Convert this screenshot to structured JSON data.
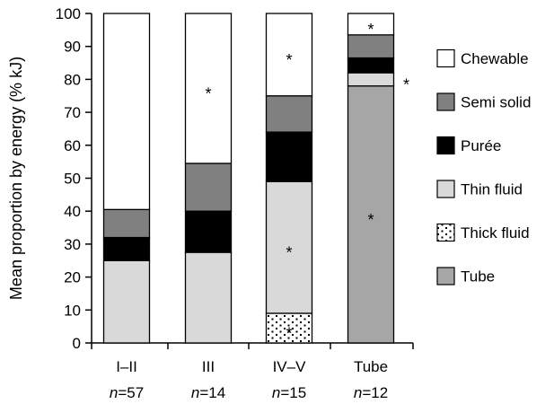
{
  "chart_data": {
    "type": "bar",
    "stacked": true,
    "ylabel": "Mean proportion by energy (% kJ)",
    "ylim": [
      0,
      100
    ],
    "yticks": [
      0,
      10,
      20,
      30,
      40,
      50,
      60,
      70,
      80,
      90,
      100
    ],
    "categories": [
      "I–II",
      "III",
      "IV–V",
      "Tube"
    ],
    "sample_sizes": [
      {
        "prefix": "n",
        "text": "=57"
      },
      {
        "prefix": "n",
        "text": "=14"
      },
      {
        "prefix": "n",
        "text": "=15"
      },
      {
        "prefix": "n",
        "text": "=12"
      }
    ],
    "series": [
      {
        "name": "Tube",
        "color": "#a6a6a6",
        "pattern": "none",
        "values": [
          0,
          0,
          0,
          78
        ]
      },
      {
        "name": "Thick fluid",
        "color": "#ffffff",
        "pattern": "dots",
        "values": [
          0,
          0,
          9,
          0
        ]
      },
      {
        "name": "Thin fluid",
        "color": "#d9d9d9",
        "pattern": "none",
        "values": [
          25,
          27.5,
          40,
          4
        ]
      },
      {
        "name": "Purée",
        "color": "#000000",
        "pattern": "none",
        "values": [
          7,
          12.5,
          15,
          4.5
        ]
      },
      {
        "name": "Semi solid",
        "color": "#808080",
        "pattern": "none",
        "values": [
          8.5,
          14.5,
          11,
          7
        ]
      },
      {
        "name": "Chewable",
        "color": "#ffffff",
        "pattern": "none",
        "values": [
          59.5,
          45.5,
          25,
          6.5
        ]
      }
    ],
    "legend_order": [
      "Chewable",
      "Semi solid",
      "Purée",
      "Thin fluid",
      "Thick fluid",
      "Tube"
    ],
    "legend_position": "right",
    "annotations": [
      {
        "category": "III",
        "series": "Chewable",
        "text": "*"
      },
      {
        "category": "IV–V",
        "series": "Chewable",
        "text": "*"
      },
      {
        "category": "IV–V",
        "series": "Thin fluid",
        "text": "*"
      },
      {
        "category": "IV–V",
        "series": "Thick fluid",
        "text": "*"
      },
      {
        "category": "Tube",
        "series": "Chewable",
        "text": "*"
      },
      {
        "category": "Tube",
        "series": "Thin fluid",
        "text": "*",
        "outside": true
      },
      {
        "category": "Tube",
        "series": "Tube",
        "text": "*"
      }
    ],
    "grid": false
  }
}
